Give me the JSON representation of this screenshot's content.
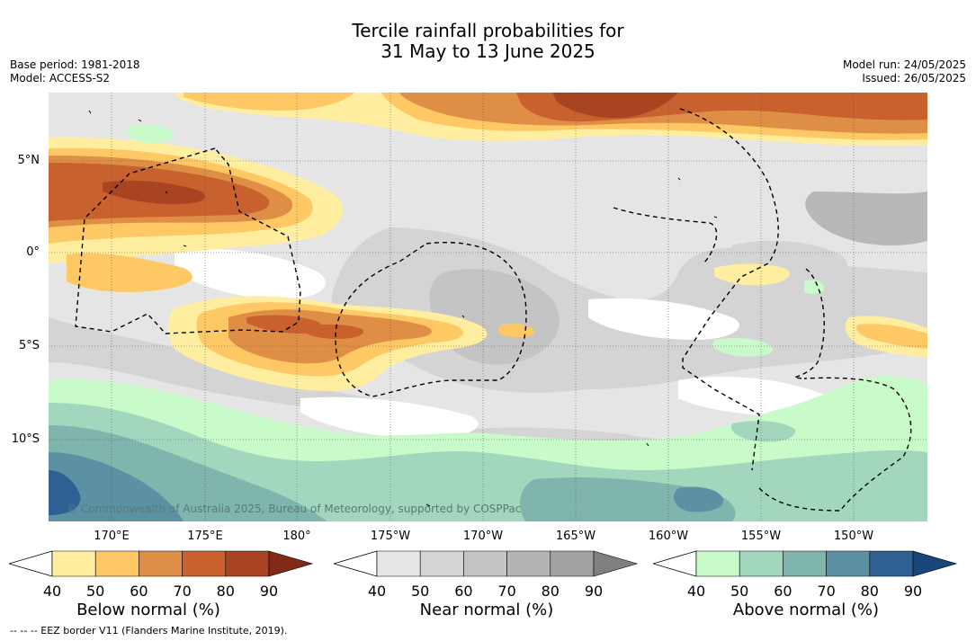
{
  "title": {
    "line1": "Tercile rainfall probabilities for",
    "line2": "31 May to 13 June 2025"
  },
  "meta_left": {
    "base_period": "Base period: 1981-2018",
    "model": "Model: ACCESS-S2"
  },
  "meta_right": {
    "model_run": "Model run: 24/05/2025",
    "issued": "Issued: 26/05/2025"
  },
  "map": {
    "lat_labels": [
      "5°N",
      "0°",
      "5°S",
      "10°S"
    ],
    "lon_labels": [
      "170°E",
      "175°E",
      "180°",
      "175°W",
      "170°W",
      "165°W",
      "160°W",
      "155°W",
      "150°W"
    ],
    "copyright": "© Commonwealth of Australia 2025, Bureau of Meteorology, supported by COSPPac"
  },
  "colorbars": [
    {
      "label": "Below normal (%)",
      "ticks": [
        "40",
        "50",
        "60",
        "70",
        "80",
        "90"
      ],
      "colors": [
        "#ffeda0",
        "#fec965",
        "#de8e45",
        "#c8612d",
        "#a84422",
        "#832a17"
      ]
    },
    {
      "label": "Near normal (%)",
      "ticks": [
        "40",
        "50",
        "60",
        "70",
        "80",
        "90"
      ],
      "colors": [
        "#e5e5e5",
        "#d4d4d4",
        "#c4c4c4",
        "#b4b4b4",
        "#a2a2a2",
        "#808080"
      ]
    },
    {
      "label": "Above normal (%)",
      "ticks": [
        "40",
        "50",
        "60",
        "70",
        "80",
        "90"
      ],
      "colors": [
        "#c8fbc9",
        "#a3d7bd",
        "#80b5ae",
        "#5b91a2",
        "#2f6093",
        "#18457a"
      ]
    }
  ],
  "legend_note": "--  --  -- EEZ border V11 (Flanders Marine Institute, 2019)."
}
